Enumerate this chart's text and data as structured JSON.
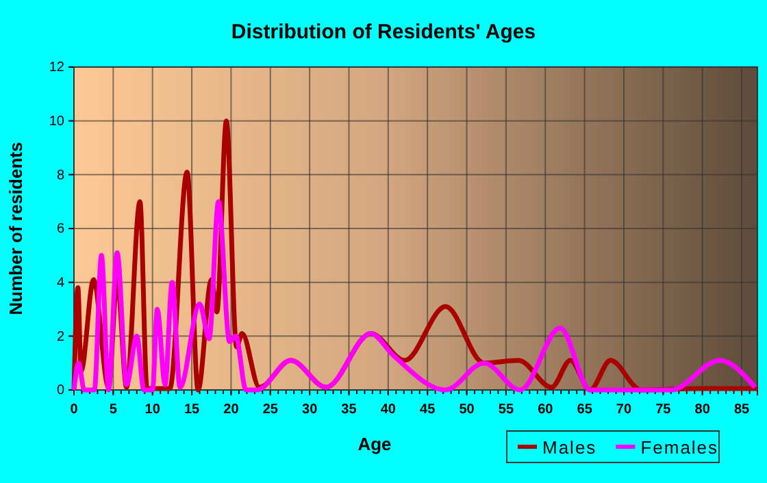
{
  "chart_data": {
    "type": "line",
    "title": "Distribution of Residents' Ages",
    "xlabel": "Age",
    "ylabel": "Number of residents",
    "xlim": [
      0,
      87
    ],
    "xticks": [
      0,
      5,
      10,
      15,
      20,
      25,
      30,
      35,
      40,
      45,
      50,
      55,
      60,
      65,
      70,
      75,
      80,
      85
    ],
    "ylim": [
      0,
      12
    ],
    "yticks": [
      0,
      2,
      4,
      6,
      8,
      10,
      12
    ],
    "grid": true,
    "legend": "bottom right",
    "marker": "none",
    "line_style": "solid",
    "series": [
      {
        "name": "Males",
        "color": "#aa0000",
        "x": [
          0,
          0.5,
          0.9,
          2.5,
          4.4,
          5.5,
          6.7,
          8.4,
          9.3,
          12.2,
          14.4,
          15.8,
          17.5,
          18.2,
          19.4,
          20.7,
          21.4,
          23.6,
          27.6,
          32.1,
          37.8,
          42.1,
          47.3,
          52.2,
          56.6,
          60.8,
          63.2,
          65.7,
          68.3,
          72.2,
          80,
          87
        ],
        "values": [
          0,
          3.8,
          0.7,
          4.1,
          0.1,
          4.1,
          0.1,
          7,
          0.05,
          0.05,
          8.1,
          0,
          4.1,
          2.9,
          10,
          1.6,
          2.1,
          0.1,
          1.1,
          0.1,
          2.1,
          1.1,
          3.1,
          1,
          1.1,
          0.1,
          1.1,
          0,
          1.1,
          0,
          0.05,
          0.05
        ]
      },
      {
        "name": "Females",
        "color": "#ff00ff",
        "x": [
          0,
          0.6,
          1.3,
          2.6,
          3.5,
          4.4,
          5.5,
          6.7,
          8,
          8.9,
          10,
          10.6,
          11.6,
          12.5,
          13.5,
          16,
          17.2,
          18.4,
          19.8,
          20.6,
          21.9,
          23.3,
          27.6,
          32.1,
          37.8,
          40.6,
          47.3,
          52.2,
          56.8,
          61.9,
          65.7,
          76,
          82.2,
          86.7
        ],
        "values": [
          0,
          1,
          0,
          0,
          5,
          0,
          5.1,
          0.2,
          2,
          0,
          0,
          3,
          0.2,
          4,
          0.1,
          3.2,
          1.9,
          7,
          1.8,
          2,
          0,
          0,
          1.1,
          0.1,
          2.1,
          1.3,
          0,
          1,
          0,
          2.3,
          0,
          0,
          1.1,
          0.1
        ]
      }
    ]
  }
}
